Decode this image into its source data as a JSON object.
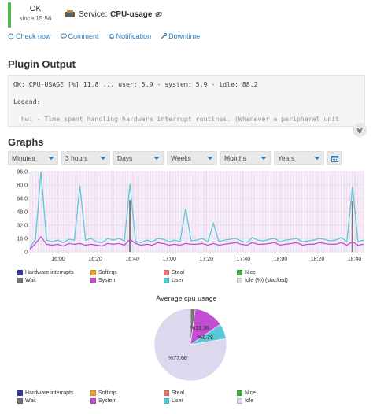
{
  "status": {
    "state": "OK",
    "since": "since 15:56",
    "color": "#4cba4c"
  },
  "service": {
    "prefix": "Service:",
    "name": "CPU-usage",
    "icon": "cpu-icon"
  },
  "actions": [
    {
      "label": "Check now",
      "icon": "refresh-icon"
    },
    {
      "label": "Comment",
      "icon": "comment-icon"
    },
    {
      "label": "Notification",
      "icon": "bell-icon"
    },
    {
      "label": "Downtime",
      "icon": "wrench-icon"
    }
  ],
  "plugin": {
    "heading": "Plugin Output",
    "line1": "OK: CPU-USAGE [%] 11.8 ... user: 5.9 - system: 5.9 - idle: 88.2",
    "line2": "Legend:",
    "line3": "  hwi - Time spent handling hardware interrupt routines. (Whenever a peripheral unit"
  },
  "graphs": {
    "heading": "Graphs",
    "selects": [
      "Minutes",
      "3 hours",
      "Days",
      "Weeks",
      "Months",
      "Years"
    ]
  },
  "chart_data": [
    {
      "type": "area",
      "x_ticks": [
        "16:00",
        "16:20",
        "16:40",
        "17:00",
        "17:20",
        "17:40",
        "18:00",
        "18:20",
        "18:40"
      ],
      "y_ticks": [
        "96.0",
        "80.0",
        "64.0",
        "48.0",
        "32.0",
        "16.0",
        "0"
      ],
      "ylim": [
        0,
        96
      ],
      "grid": true,
      "series": [
        {
          "name": "User",
          "color": "#5bc8d8",
          "values": [
            5,
            15,
            96,
            14,
            12,
            14,
            11,
            15,
            14,
            79,
            14,
            16,
            12,
            11,
            16,
            14,
            16,
            13,
            81,
            12,
            11,
            14,
            12,
            16,
            15,
            12,
            14,
            12,
            52,
            13,
            14,
            16,
            12,
            34,
            12,
            14,
            15,
            16,
            13,
            11,
            17,
            14,
            13,
            15,
            16,
            12,
            14,
            15,
            16,
            12,
            13,
            14,
            16,
            15,
            13,
            14,
            17,
            12,
            78,
            12,
            14
          ]
        },
        {
          "name": "System",
          "color": "#c24fd1",
          "values": [
            3,
            10,
            18,
            9,
            8,
            9,
            7,
            10,
            9,
            10,
            8,
            9,
            8,
            7,
            10,
            9,
            10,
            8,
            15,
            10,
            8,
            9,
            8,
            11,
            10,
            8,
            9,
            8,
            10,
            9,
            9,
            10,
            8,
            10,
            8,
            9,
            10,
            11,
            9,
            8,
            11,
            9,
            9,
            10,
            11,
            8,
            9,
            10,
            11,
            8,
            9,
            9,
            11,
            10,
            9,
            9,
            11,
            8,
            12,
            8,
            9
          ]
        },
        {
          "name": "Wait",
          "color": "#777777",
          "values": [
            0,
            0,
            0,
            0,
            0,
            0,
            0,
            0,
            0,
            0,
            0,
            0,
            0,
            0,
            0,
            0,
            0,
            0,
            62,
            0,
            0,
            0,
            0,
            0,
            0,
            0,
            0,
            0,
            0,
            0,
            0,
            0,
            0,
            0,
            0,
            0,
            0,
            0,
            0,
            0,
            0,
            0,
            0,
            0,
            0,
            0,
            0,
            0,
            0,
            0,
            0,
            0,
            0,
            0,
            0,
            0,
            0,
            0,
            60,
            0,
            0
          ]
        }
      ]
    },
    {
      "type": "pie",
      "title": "Average cpu usage",
      "slices": [
        {
          "name": "Idle",
          "value": 77.68,
          "label": "%77.68",
          "color": "#dcd8ee"
        },
        {
          "name": "Wait",
          "value": 2.18,
          "label": "",
          "color": "#777777"
        },
        {
          "name": "System",
          "value": 13.36,
          "label": "%13.36",
          "color": "#c24fd1"
        },
        {
          "name": "User",
          "value": 6.78,
          "label": "%6.78",
          "color": "#5bc8d8"
        }
      ]
    }
  ],
  "legend": [
    {
      "label": "Hardware interrupts",
      "color": "#3f3fa8"
    },
    {
      "label": "Softirqs",
      "color": "#f0a030"
    },
    {
      "label": "Steal",
      "color": "#e87a7a"
    },
    {
      "label": "Nice",
      "color": "#48b048"
    },
    {
      "label": "Wait",
      "color": "#777777"
    },
    {
      "label": "System",
      "color": "#c24fd1"
    },
    {
      "label": "User",
      "color": "#5bc8d8"
    },
    {
      "label": "Idle (%) (stacked)",
      "color": "#dcd8ee"
    }
  ],
  "legend2": [
    {
      "label": "Hardware interrupts",
      "color": "#3f3fa8"
    },
    {
      "label": "Softirqs",
      "color": "#f0a030"
    },
    {
      "label": "Steal",
      "color": "#e87a7a"
    },
    {
      "label": "Nice",
      "color": "#48b048"
    },
    {
      "label": "Wait",
      "color": "#777777"
    },
    {
      "label": "System",
      "color": "#c24fd1"
    },
    {
      "label": "User",
      "color": "#5bc8d8"
    },
    {
      "label": "Idle",
      "color": "#dcd8ee"
    }
  ]
}
